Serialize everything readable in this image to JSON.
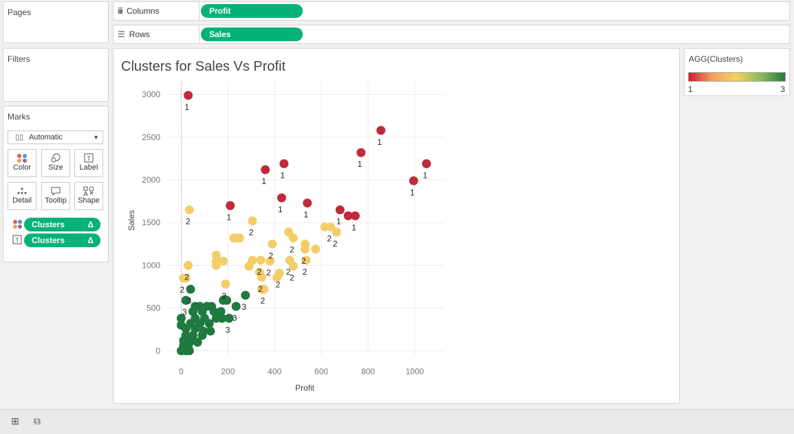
{
  "pages": {
    "title": "Pages"
  },
  "filters": {
    "title": "Filters"
  },
  "columns": {
    "label": "Columns",
    "pill": "Profit"
  },
  "rows": {
    "label": "Rows",
    "pill": "Sales"
  },
  "marks": {
    "title": "Marks",
    "type": "Automatic",
    "buttons": [
      "Color",
      "Size",
      "Label",
      "Detail",
      "Tooltip",
      "Shape"
    ],
    "pills": [
      {
        "field": "Clusters",
        "delta": "Δ",
        "icon": "color-dots-icon"
      },
      {
        "field": "Clusters",
        "delta": "Δ",
        "icon": "label-text-icon"
      }
    ]
  },
  "legend": {
    "title": "AGG(Clusters)",
    "min": "1",
    "max": "3",
    "colors": [
      "#c8202e",
      "#f5a45a",
      "#f3d064",
      "#8cb85a",
      "#1f7a3e"
    ]
  },
  "chart_data": {
    "type": "scatter",
    "title": "Clusters for Sales Vs Profit",
    "xlabel": "Profit",
    "ylabel": "Sales",
    "xlim": [
      -60,
      1130
    ],
    "ylim": [
      -50,
      3150
    ],
    "xticks": [
      0,
      200,
      400,
      600,
      800,
      1000
    ],
    "yticks": [
      0,
      500,
      1000,
      1500,
      2000,
      2500,
      3000
    ],
    "grid": true,
    "cluster_colors": {
      "1": "#c02b3c",
      "2": "#f2cd6a",
      "3": "#1e7a40"
    },
    "series": [
      {
        "name": "1",
        "points": [
          [
            30,
            2990,
            "1"
          ],
          [
            210,
            1700,
            "1"
          ],
          [
            360,
            2120,
            "1"
          ],
          [
            440,
            2190,
            "1"
          ],
          [
            430,
            1790,
            "1"
          ],
          [
            540,
            1730,
            "1"
          ],
          [
            680,
            1650,
            "1"
          ],
          [
            715,
            1580,
            ""
          ],
          [
            745,
            1580,
            "1"
          ],
          [
            770,
            2320,
            "1"
          ],
          [
            855,
            2580,
            "1"
          ],
          [
            995,
            1990,
            "1"
          ],
          [
            1050,
            2190,
            "1"
          ]
        ]
      },
      {
        "name": "2",
        "points": [
          [
            35,
            1650,
            "2"
          ],
          [
            305,
            1520,
            "2"
          ],
          [
            225,
            1320,
            ""
          ],
          [
            240,
            1320,
            ""
          ],
          [
            250,
            1320,
            ""
          ],
          [
            150,
            1120,
            ""
          ],
          [
            150,
            1050,
            ""
          ],
          [
            180,
            1050,
            ""
          ],
          [
            150,
            1000,
            ""
          ],
          [
            30,
            1000,
            "2"
          ],
          [
            10,
            850,
            "2"
          ],
          [
            20,
            850,
            ""
          ],
          [
            190,
            780,
            "2"
          ],
          [
            290,
            990,
            ""
          ],
          [
            305,
            1060,
            ""
          ],
          [
            340,
            1060,
            "2"
          ],
          [
            335,
            920,
            ""
          ],
          [
            345,
            860,
            "2"
          ],
          [
            345,
            720,
            ""
          ],
          [
            355,
            720,
            "2"
          ],
          [
            390,
            1250,
            "2"
          ],
          [
            380,
            1050,
            "2"
          ],
          [
            410,
            860,
            ""
          ],
          [
            420,
            910,
            "2"
          ],
          [
            460,
            1390,
            ""
          ],
          [
            465,
            1060,
            "2"
          ],
          [
            480,
            990,
            "2"
          ],
          [
            480,
            1320,
            "2"
          ],
          [
            530,
            1250,
            ""
          ],
          [
            530,
            1190,
            "2"
          ],
          [
            535,
            1060,
            "2"
          ],
          [
            575,
            1190,
            ""
          ],
          [
            615,
            1450,
            ""
          ],
          [
            640,
            1450,
            "2"
          ],
          [
            665,
            1390,
            "2"
          ]
        ]
      },
      {
        "name": "3",
        "points": [
          [
            40,
            720,
            "3"
          ],
          [
            20,
            590,
            "3"
          ],
          [
            180,
            590,
            ""
          ],
          [
            185,
            600,
            ""
          ],
          [
            195,
            590,
            ""
          ],
          [
            235,
            520,
            "3"
          ],
          [
            275,
            650,
            "3"
          ],
          [
            205,
            380,
            "3"
          ],
          [
            60,
            520,
            ""
          ],
          [
            80,
            520,
            ""
          ],
          [
            110,
            520,
            ""
          ],
          [
            130,
            520,
            ""
          ],
          [
            50,
            460,
            ""
          ],
          [
            90,
            460,
            ""
          ],
          [
            140,
            460,
            ""
          ],
          [
            170,
            460,
            ""
          ],
          [
            60,
            380,
            ""
          ],
          [
            100,
            380,
            ""
          ],
          [
            150,
            380,
            ""
          ],
          [
            175,
            380,
            ""
          ],
          [
            0,
            380,
            ""
          ],
          [
            40,
            320,
            ""
          ],
          [
            80,
            320,
            ""
          ],
          [
            120,
            320,
            ""
          ],
          [
            0,
            300,
            ""
          ],
          [
            20,
            260,
            ""
          ],
          [
            60,
            260,
            ""
          ],
          [
            95,
            230,
            ""
          ],
          [
            125,
            230,
            ""
          ],
          [
            20,
            180,
            ""
          ],
          [
            50,
            180,
            ""
          ],
          [
            90,
            180,
            ""
          ],
          [
            10,
            120,
            ""
          ],
          [
            40,
            110,
            ""
          ],
          [
            70,
            100,
            ""
          ],
          [
            30,
            50,
            ""
          ],
          [
            0,
            0,
            ""
          ],
          [
            20,
            0,
            ""
          ],
          [
            35,
            0,
            ""
          ],
          [
            10,
            60,
            ""
          ]
        ]
      }
    ]
  }
}
